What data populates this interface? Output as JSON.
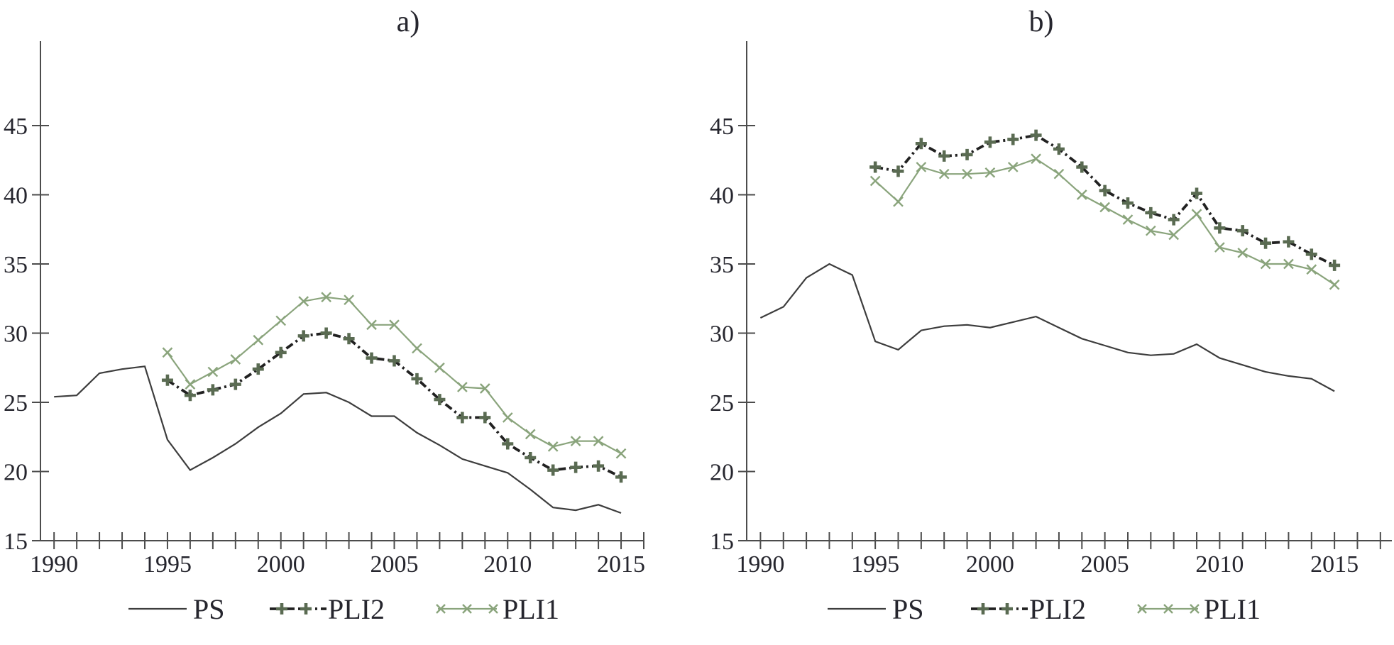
{
  "figure": {
    "panel_a_title": "a)",
    "panel_b_title": "b)"
  },
  "colors": {
    "ps_line": "#3d3d3d",
    "pli2_line": "#212121",
    "pli2_marker": "#5a6b52",
    "pli1_line": "#8aa47c",
    "axis": "#4c4c4c",
    "text": "#26262e",
    "background": "#ffffff"
  },
  "chart_data": [
    {
      "type": "line",
      "title": "a)",
      "xlabel": "",
      "ylabel": "",
      "x_axis": {
        "tick_step": 1,
        "first_tick": 1990,
        "last_tick": 2016,
        "labeled_ticks": [
          1990,
          1995,
          2000,
          2005,
          2010,
          2015
        ],
        "xlim": [
          1989.4,
          2016.0
        ]
      },
      "y_axis": {
        "ticks": [
          15,
          20,
          25,
          30,
          35,
          40,
          45
        ],
        "ylim": [
          15,
          51.1
        ],
        "grid": false
      },
      "legend_position": "bottom",
      "series": [
        {
          "name": "PS",
          "line": "solid",
          "marker": "none",
          "start_year": 1995,
          "values_start_year": 1990,
          "values": [
            25.4,
            25.5,
            27.1,
            27.4,
            27.6,
            22.3,
            20.1,
            21.0,
            22.0,
            23.2,
            24.2,
            25.6,
            25.7,
            25.0,
            24.0,
            24.0,
            22.8,
            21.9,
            20.9,
            20.4,
            19.9,
            18.7,
            17.4,
            17.2,
            17.6,
            17.0
          ]
        },
        {
          "name": "PLI2",
          "line": "dashdot",
          "marker": "plus",
          "start_year": 1995,
          "values_start_year": 1995,
          "values": [
            26.6,
            25.5,
            25.9,
            26.3,
            27.4,
            28.6,
            29.8,
            30.0,
            29.6,
            28.2,
            28.0,
            26.7,
            25.2,
            23.9,
            23.9,
            22.0,
            21.0,
            20.1,
            20.3,
            20.4,
            19.6
          ]
        },
        {
          "name": "PLI1",
          "line": "solid",
          "marker": "x",
          "start_year": 1995,
          "values_start_year": 1995,
          "values": [
            28.6,
            26.3,
            27.2,
            28.1,
            29.5,
            30.9,
            32.3,
            32.6,
            32.4,
            30.6,
            30.6,
            28.9,
            27.5,
            26.1,
            26.0,
            23.9,
            22.7,
            21.8,
            22.2,
            22.2,
            21.3
          ]
        }
      ]
    },
    {
      "type": "line",
      "title": "b)",
      "xlabel": "",
      "ylabel": "",
      "x_axis": {
        "tick_step": 1,
        "first_tick": 1990,
        "last_tick": 2017,
        "labeled_ticks": [
          1990,
          1995,
          2000,
          2005,
          2010,
          2015
        ],
        "xlim": [
          1989.4,
          2017.5
        ]
      },
      "y_axis": {
        "ticks": [
          15,
          20,
          25,
          30,
          35,
          40,
          45
        ],
        "ylim": [
          15,
          51.1
        ],
        "grid": false
      },
      "legend_position": "bottom",
      "series": [
        {
          "name": "PS",
          "line": "solid",
          "marker": "none",
          "start_year": 1995,
          "values_start_year": 1990,
          "values": [
            31.1,
            31.9,
            34.0,
            35.0,
            34.2,
            29.4,
            28.8,
            30.2,
            30.5,
            30.6,
            30.4,
            30.8,
            31.2,
            30.4,
            29.6,
            29.1,
            28.6,
            28.4,
            28.5,
            29.2,
            28.2,
            27.7,
            27.2,
            26.9,
            26.7,
            25.8
          ]
        },
        {
          "name": "PLI2",
          "line": "dashdot",
          "marker": "plus",
          "start_year": 1995,
          "values_start_year": 1995,
          "values": [
            42.0,
            41.7,
            43.7,
            42.8,
            42.9,
            43.8,
            44.0,
            44.3,
            43.3,
            42.0,
            40.3,
            39.4,
            38.7,
            38.2,
            40.1,
            37.6,
            37.4,
            36.5,
            36.6,
            35.7,
            34.9
          ]
        },
        {
          "name": "PLI1",
          "line": "solid",
          "marker": "x",
          "start_year": 1995,
          "values_start_year": 1995,
          "values": [
            41.0,
            39.5,
            42.0,
            41.5,
            41.5,
            41.6,
            42.0,
            42.6,
            41.5,
            40.0,
            39.1,
            38.2,
            37.4,
            37.1,
            38.6,
            36.2,
            35.8,
            35.0,
            35.0,
            34.6,
            33.5
          ]
        }
      ]
    }
  ]
}
